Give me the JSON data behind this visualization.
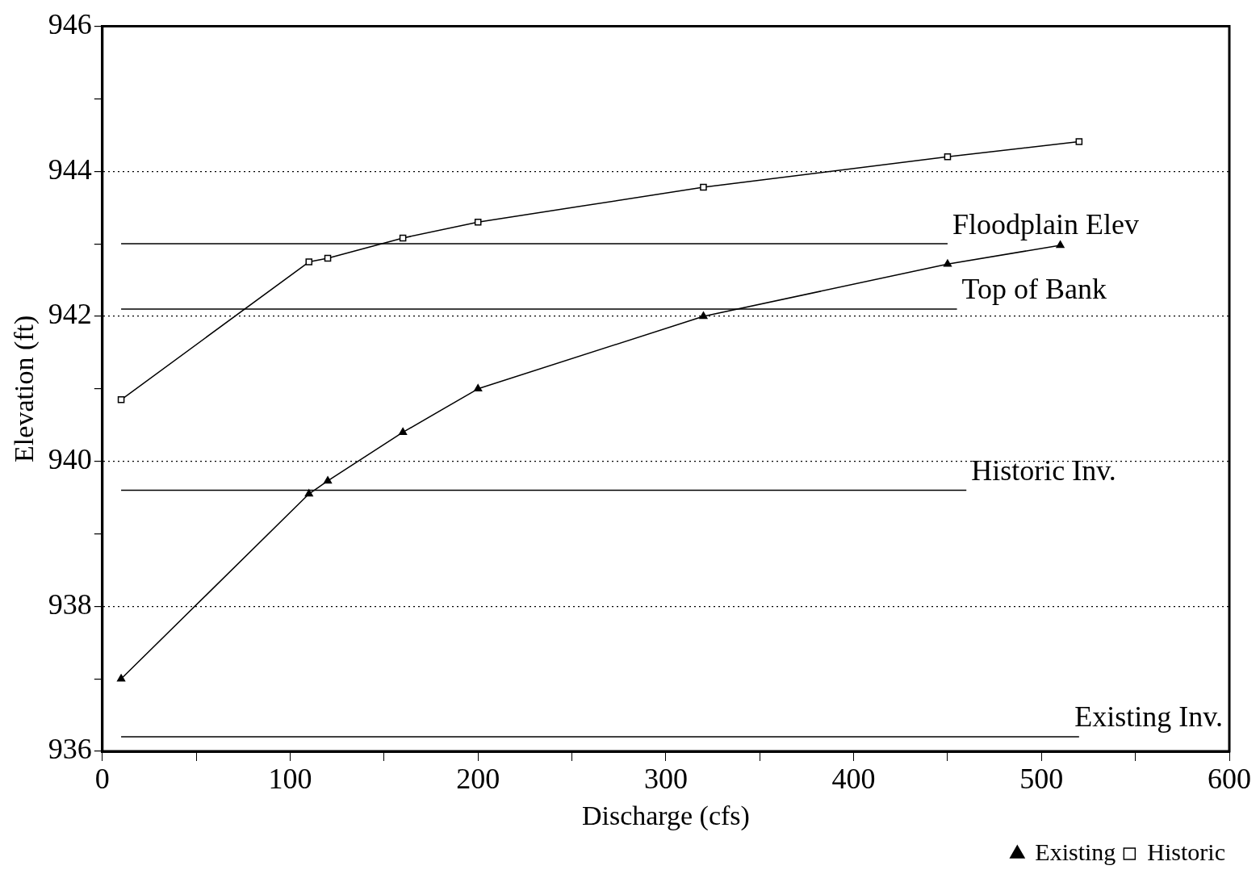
{
  "chart_data": {
    "type": "line",
    "xlabel": "Discharge (cfs)",
    "ylabel": "Elevation (ft)",
    "xlim": [
      0,
      600
    ],
    "ylim": [
      936,
      946
    ],
    "xticks": [
      0,
      {
        "value": 50,
        "label": null
      },
      100,
      {
        "value": 150,
        "label": null
      },
      200,
      {
        "value": 250,
        "label": null
      },
      300,
      {
        "value": 350,
        "label": null
      },
      400,
      {
        "value": 450,
        "label": null
      },
      500,
      {
        "value": 550,
        "label": null
      },
      600
    ],
    "yticks": [
      936,
      {
        "value": 937,
        "label": null
      },
      938,
      {
        "value": 939,
        "label": null
      },
      940,
      {
        "value": 941,
        "label": null
      },
      942,
      {
        "value": 943,
        "label": null
      },
      944,
      {
        "value": 945,
        "label": null
      },
      946
    ],
    "grid": "y",
    "legend": "bottom right",
    "series": [
      {
        "name": "Existing",
        "type": "line",
        "marker": "triangle",
        "color": "#000000",
        "x": [
          10,
          110,
          120,
          160,
          200,
          320,
          450,
          510
        ],
        "values": [
          937.0,
          939.55,
          939.73,
          940.4,
          941.0,
          942.0,
          942.72,
          942.98
        ]
      },
      {
        "name": "Historic",
        "type": "line",
        "marker": "square",
        "color": "#000000",
        "x": [
          10,
          110,
          120,
          160,
          200,
          320,
          450,
          520
        ],
        "values": [
          940.85,
          942.75,
          942.8,
          943.08,
          943.3,
          943.78,
          944.2,
          944.41
        ]
      },
      {
        "name": "Floodplain Elev",
        "type": "line",
        "marker": "none",
        "color": "#000000",
        "x": [
          10,
          450
        ],
        "values": [
          943.0,
          943.0
        ]
      },
      {
        "name": "Top of Bank",
        "type": "line",
        "marker": "none",
        "color": "#000000",
        "x": [
          10,
          455
        ],
        "values": [
          942.1,
          942.1
        ]
      },
      {
        "name": "Historic Inv.",
        "type": "line",
        "marker": "none",
        "color": "#000000",
        "x": [
          10,
          460
        ],
        "values": [
          939.6,
          939.6
        ]
      },
      {
        "name": "Existing Inv.",
        "type": "line",
        "marker": "none",
        "color": "#000000",
        "x": [
          10,
          520
        ],
        "values": [
          936.2,
          936.2
        ]
      }
    ]
  }
}
